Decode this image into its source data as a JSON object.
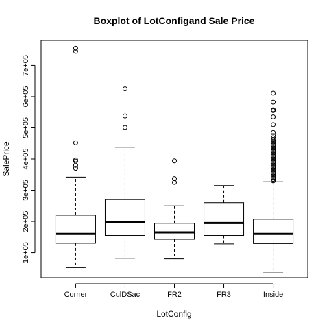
{
  "chart_data": {
    "type": "boxplot",
    "title": "Boxplot of LotConfigand Sale Price",
    "xlabel": "LotConfig",
    "ylabel": "SalePrice",
    "ylim": [
      20000,
      780000
    ],
    "y_ticks": [
      100000,
      200000,
      300000,
      400000,
      500000,
      600000,
      700000
    ],
    "y_tick_labels": [
      "1e+05",
      "2e+05",
      "3e+05",
      "4e+05",
      "5e+05",
      "6e+05",
      "7e+05"
    ],
    "categories": [
      "Corner",
      "CulDSac",
      "FR2",
      "FR3",
      "Inside"
    ],
    "boxes": [
      {
        "category": "Corner",
        "min": 52000,
        "q1": 130000,
        "median": 160000,
        "q3": 220000,
        "max": 342000,
        "outliers": [
          370000,
          380000,
          393000,
          397000,
          452000,
          745000,
          755000
        ]
      },
      {
        "category": "CulDSac",
        "min": 82000,
        "q1": 155000,
        "median": 199000,
        "q3": 270000,
        "max": 438000,
        "outliers": [
          501000,
          538000,
          625000
        ]
      },
      {
        "category": "FR2",
        "min": 80000,
        "q1": 143000,
        "median": 165000,
        "q3": 194000,
        "max": 250000,
        "outliers": [
          325000,
          337000,
          394000
        ]
      },
      {
        "category": "FR3",
        "min": 128000,
        "q1": 155000,
        "median": 195000,
        "q3": 260000,
        "max": 315000,
        "outliers": []
      },
      {
        "category": "Inside",
        "min": 35000,
        "q1": 129000,
        "median": 160000,
        "q3": 207000,
        "max": 327000,
        "outliers": [
          330000,
          335000,
          340000,
          345000,
          350000,
          355000,
          360000,
          365000,
          370000,
          375000,
          380000,
          385000,
          390000,
          395000,
          400000,
          405000,
          410000,
          415000,
          420000,
          425000,
          430000,
          435000,
          440000,
          445000,
          450000,
          455000,
          460000,
          468000,
          475000,
          485000,
          510000,
          535000,
          555000,
          558000,
          582000,
          611000
        ]
      }
    ],
    "grid": false,
    "legend": "none"
  }
}
